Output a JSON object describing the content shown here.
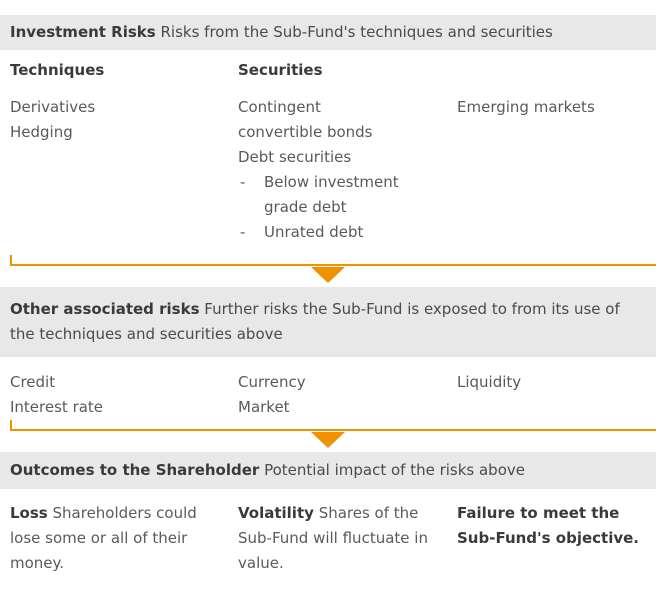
{
  "sections": [
    {
      "title": "Investment Risks",
      "description": "Risks from the Sub-Fund's techniques and securities",
      "columns": [
        {
          "heading": "Techniques",
          "items": [
            "Derivatives",
            "Hedging"
          ]
        },
        {
          "heading": "Securities",
          "items": [
            "Contingent convertible bonds",
            "Debt securities"
          ],
          "subitems": [
            "Below investment grade debt",
            "Unrated debt"
          ]
        },
        {
          "items": [
            "Emerging markets"
          ]
        }
      ]
    },
    {
      "title": "Other associated risks",
      "description": "Further risks the Sub-Fund is exposed to from its use of the techniques and securities above",
      "columns": [
        {
          "items": [
            "Credit",
            "Interest rate"
          ]
        },
        {
          "items": [
            "Currency",
            "Market"
          ]
        },
        {
          "items": [
            "Liquidity"
          ]
        }
      ]
    },
    {
      "title": "Outcomes to the Shareholder",
      "description": "Potential impact of the risks above",
      "columns": [
        {
          "lead": "Loss",
          "text": "Shareholders could lose some or all of their money."
        },
        {
          "lead": "Volatility",
          "text": "Shares of the Sub-Fund will fluctuate in value."
        },
        {
          "lead": "Failure to meet the Sub-Fund's objective."
        }
      ]
    }
  ]
}
